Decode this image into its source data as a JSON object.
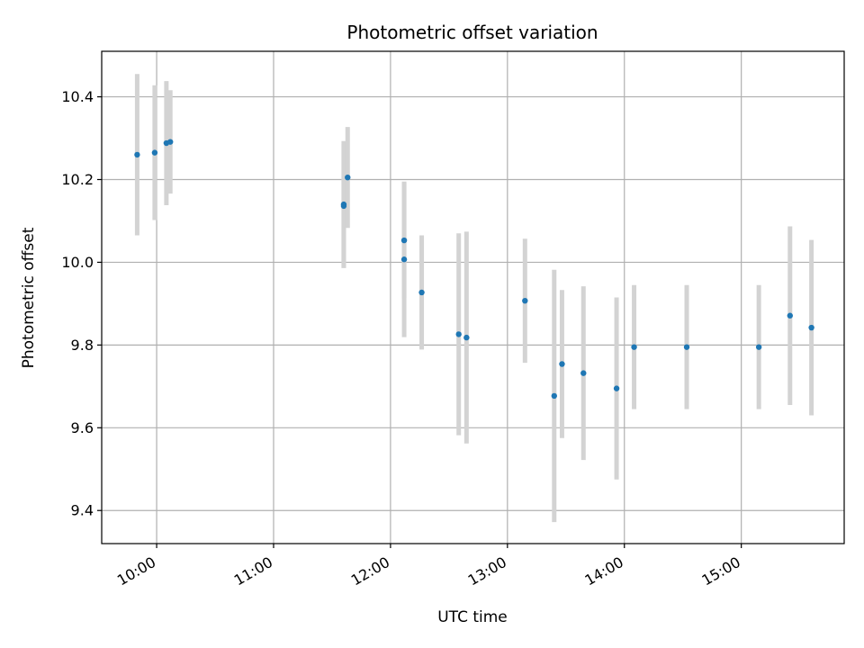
{
  "chart_data": {
    "type": "scatter",
    "title": "Photometric offset variation",
    "xlabel": "UTC time",
    "ylabel": "Photometric offset",
    "x_tick_labels": [
      "10:00",
      "11:00",
      "12:00",
      "13:00",
      "14:00",
      "15:00"
    ],
    "x_ticks_hours": [
      10,
      11,
      12,
      13,
      14,
      15
    ],
    "y_ticks": [
      9.4,
      9.6,
      9.8,
      10.0,
      10.2,
      10.4
    ],
    "y_tick_labels": [
      "9.4",
      "9.6",
      "9.8",
      "10.0",
      "10.2",
      "10.4"
    ],
    "xlim_hours": [
      9.53,
      15.88
    ],
    "ylim": [
      9.32,
      10.51
    ],
    "grid": true,
    "points": [
      {
        "time": "09:50",
        "y": 10.26,
        "err": 0.195
      },
      {
        "time": "09:59",
        "y": 10.265,
        "err": 0.163
      },
      {
        "time": "10:05",
        "y": 10.288,
        "err": 0.15
      },
      {
        "time": "10:07",
        "y": 10.291,
        "err": 0.125
      },
      {
        "time": "11:36",
        "y": 10.14,
        "err": 0.153
      },
      {
        "time": "11:36",
        "y": 10.136,
        "err": 0.15
      },
      {
        "time": "11:38",
        "y": 10.205,
        "err": 0.122
      },
      {
        "time": "12:07",
        "y": 10.007,
        "err": 0.188
      },
      {
        "time": "12:07",
        "y": 10.053,
        "err": 0.14
      },
      {
        "time": "12:16",
        "y": 9.927,
        "err": 0.138
      },
      {
        "time": "12:35",
        "y": 9.826,
        "err": 0.244
      },
      {
        "time": "12:39",
        "y": 9.818,
        "err": 0.256
      },
      {
        "time": "13:09",
        "y": 9.907,
        "err": 0.15
      },
      {
        "time": "13:24",
        "y": 9.677,
        "err": 0.305
      },
      {
        "time": "13:28",
        "y": 9.754,
        "err": 0.179
      },
      {
        "time": "13:39",
        "y": 9.732,
        "err": 0.21
      },
      {
        "time": "13:56",
        "y": 9.695,
        "err": 0.22
      },
      {
        "time": "14:05",
        "y": 9.795,
        "err": 0.15
      },
      {
        "time": "14:32",
        "y": 9.795,
        "err": 0.15
      },
      {
        "time": "15:09",
        "y": 9.795,
        "err": 0.15
      },
      {
        "time": "15:25",
        "y": 9.871,
        "err": 0.216
      },
      {
        "time": "15:36",
        "y": 9.842,
        "err": 0.212
      }
    ],
    "colors": {
      "points": "#1f77b4",
      "errorbars": "#d3d3d3",
      "grid": "#b0b0b0",
      "axes": "#000000"
    }
  }
}
